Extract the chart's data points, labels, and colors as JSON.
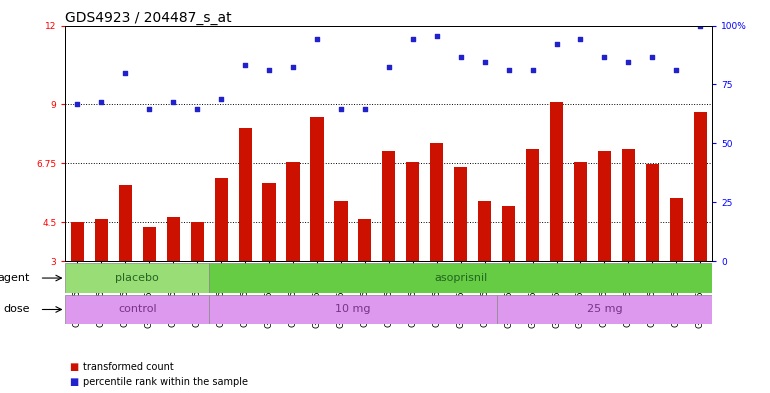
{
  "title": "GDS4923 / 204487_s_at",
  "samples": [
    "GSM1152626",
    "GSM1152629",
    "GSM1152632",
    "GSM1152638",
    "GSM1152647",
    "GSM1152652",
    "GSM1152625",
    "GSM1152627",
    "GSM1152631",
    "GSM1152634",
    "GSM1152636",
    "GSM1152637",
    "GSM1152640",
    "GSM1152642",
    "GSM1152644",
    "GSM1152646",
    "GSM1152651",
    "GSM1152628",
    "GSM1152630",
    "GSM1152633",
    "GSM1152635",
    "GSM1152639",
    "GSM1152641",
    "GSM1152643",
    "GSM1152645",
    "GSM1152649",
    "GSM1152650"
  ],
  "bar_values": [
    4.5,
    4.6,
    5.9,
    4.3,
    4.7,
    4.5,
    6.2,
    8.1,
    6.0,
    6.8,
    8.5,
    5.3,
    4.6,
    7.2,
    6.8,
    7.5,
    6.6,
    5.3,
    5.1,
    7.3,
    9.1,
    6.8,
    7.2,
    7.3,
    6.7,
    5.4,
    8.7
  ],
  "scatter_values": [
    9.0,
    9.1,
    10.2,
    8.8,
    9.1,
    8.8,
    9.2,
    10.5,
    10.3,
    10.4,
    11.5,
    8.8,
    8.8,
    10.4,
    11.5,
    11.6,
    10.8,
    10.6,
    10.3,
    10.3,
    11.3,
    11.5,
    10.8,
    10.6,
    10.8,
    10.3,
    12.0
  ],
  "ylim_left": [
    3,
    12
  ],
  "yticks_left": [
    3,
    4.5,
    6.75,
    9,
    12
  ],
  "ytick_labels_left": [
    "3",
    "4.5",
    "6.75",
    "9",
    "12"
  ],
  "yticks_right_vals": [
    0,
    25,
    50,
    75,
    100
  ],
  "ytick_labels_right": [
    "0",
    "25",
    "50",
    "75",
    "100%"
  ],
  "hlines": [
    4.5,
    6.75,
    9.0
  ],
  "bar_color": "#cc1100",
  "scatter_color": "#2222cc",
  "agent_groups": [
    {
      "label": "placebo",
      "start": 0,
      "end": 5,
      "color": "#99dd77",
      "text_color": "#226622"
    },
    {
      "label": "asoprisnil",
      "start": 6,
      "end": 26,
      "color": "#66cc44",
      "text_color": "#226622"
    }
  ],
  "dose_groups": [
    {
      "label": "control",
      "start": 0,
      "end": 5,
      "color": "#dd99ee",
      "text_color": "#773388"
    },
    {
      "label": "10 mg",
      "start": 6,
      "end": 17,
      "color": "#dd99ee",
      "text_color": "#773388"
    },
    {
      "label": "25 mg",
      "start": 18,
      "end": 26,
      "color": "#dd99ee",
      "text_color": "#773388"
    }
  ],
  "legend_items": [
    {
      "label": "transformed count",
      "color": "#cc1100"
    },
    {
      "label": "percentile rank within the sample",
      "color": "#2222cc"
    }
  ],
  "title_fontsize": 10,
  "tick_fontsize": 6.5,
  "label_fontsize": 8,
  "row_label_fontsize": 8
}
